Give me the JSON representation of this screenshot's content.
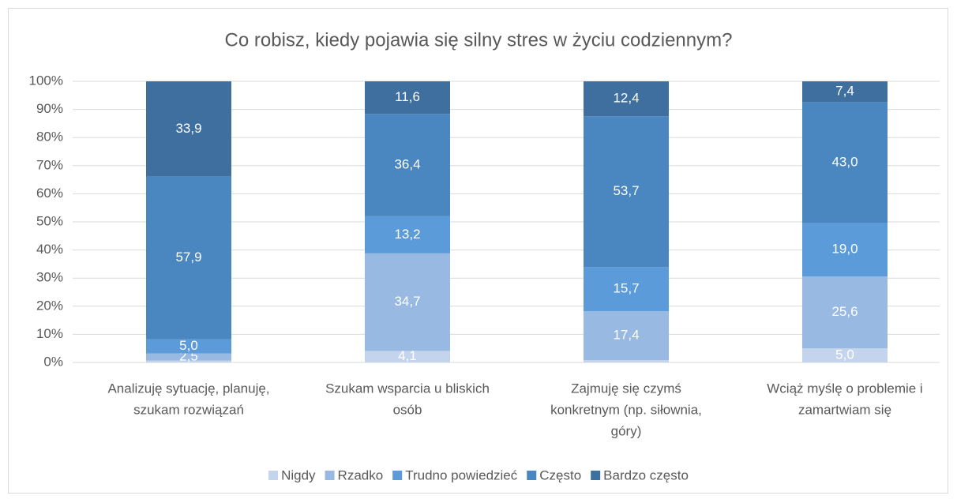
{
  "chart_data": {
    "type": "stacked_bar_100",
    "title": "Co robisz, kiedy pojawia się silny stres w życiu codziennym?",
    "categories": [
      [
        "Analizuję sytuację, planuję,",
        "szukam rozwiązań"
      ],
      [
        "Szukam wsparcia u bliskich",
        "osób"
      ],
      [
        "Zajmuję się czymś",
        "konkretnym (np. siłownia,",
        "góry)"
      ],
      [
        "Wciąż myślę o problemie i",
        "zamartwiam się"
      ]
    ],
    "series": [
      {
        "name": "Nigdy",
        "color": "#c4d4ec",
        "values": [
          0.7,
          4.1,
          0.8,
          5.0
        ],
        "value_labels": [
          null,
          "4,1",
          null,
          "5,0"
        ]
      },
      {
        "name": "Rzadko",
        "color": "#98b9e1",
        "values": [
          2.5,
          34.7,
          17.4,
          25.6
        ],
        "value_labels": [
          "2,5",
          "34,7",
          "17,4",
          "25,6"
        ]
      },
      {
        "name": "Trudno powiedzieć",
        "color": "#5b9bd9",
        "values": [
          5.0,
          13.2,
          15.7,
          19.0
        ],
        "value_labels": [
          "5,0",
          "13,2",
          "15,7",
          "19,0"
        ]
      },
      {
        "name": "Często",
        "color": "#4a86bf",
        "values": [
          57.9,
          36.4,
          53.7,
          43.0
        ],
        "value_labels": [
          "57,9",
          "36,4",
          "53,7",
          "43,0"
        ]
      },
      {
        "name": "Bardzo często",
        "color": "#3f6f9f",
        "values": [
          33.9,
          11.6,
          12.4,
          7.4
        ],
        "value_labels": [
          "33,9",
          "11,6",
          "12,4",
          "7,4"
        ]
      }
    ],
    "ylim": [
      0,
      100
    ],
    "yticks": [
      {
        "value": 0,
        "label": "0%"
      },
      {
        "value": 10,
        "label": "10%"
      },
      {
        "value": 20,
        "label": "20%"
      },
      {
        "value": 30,
        "label": "30%"
      },
      {
        "value": 40,
        "label": "40%"
      },
      {
        "value": 50,
        "label": "50%"
      },
      {
        "value": 60,
        "label": "60%"
      },
      {
        "value": 70,
        "label": "70%"
      },
      {
        "value": 80,
        "label": "80%"
      },
      {
        "value": 90,
        "label": "90%"
      },
      {
        "value": 100,
        "label": "100%"
      }
    ],
    "grid": true,
    "legend": "bottom"
  }
}
